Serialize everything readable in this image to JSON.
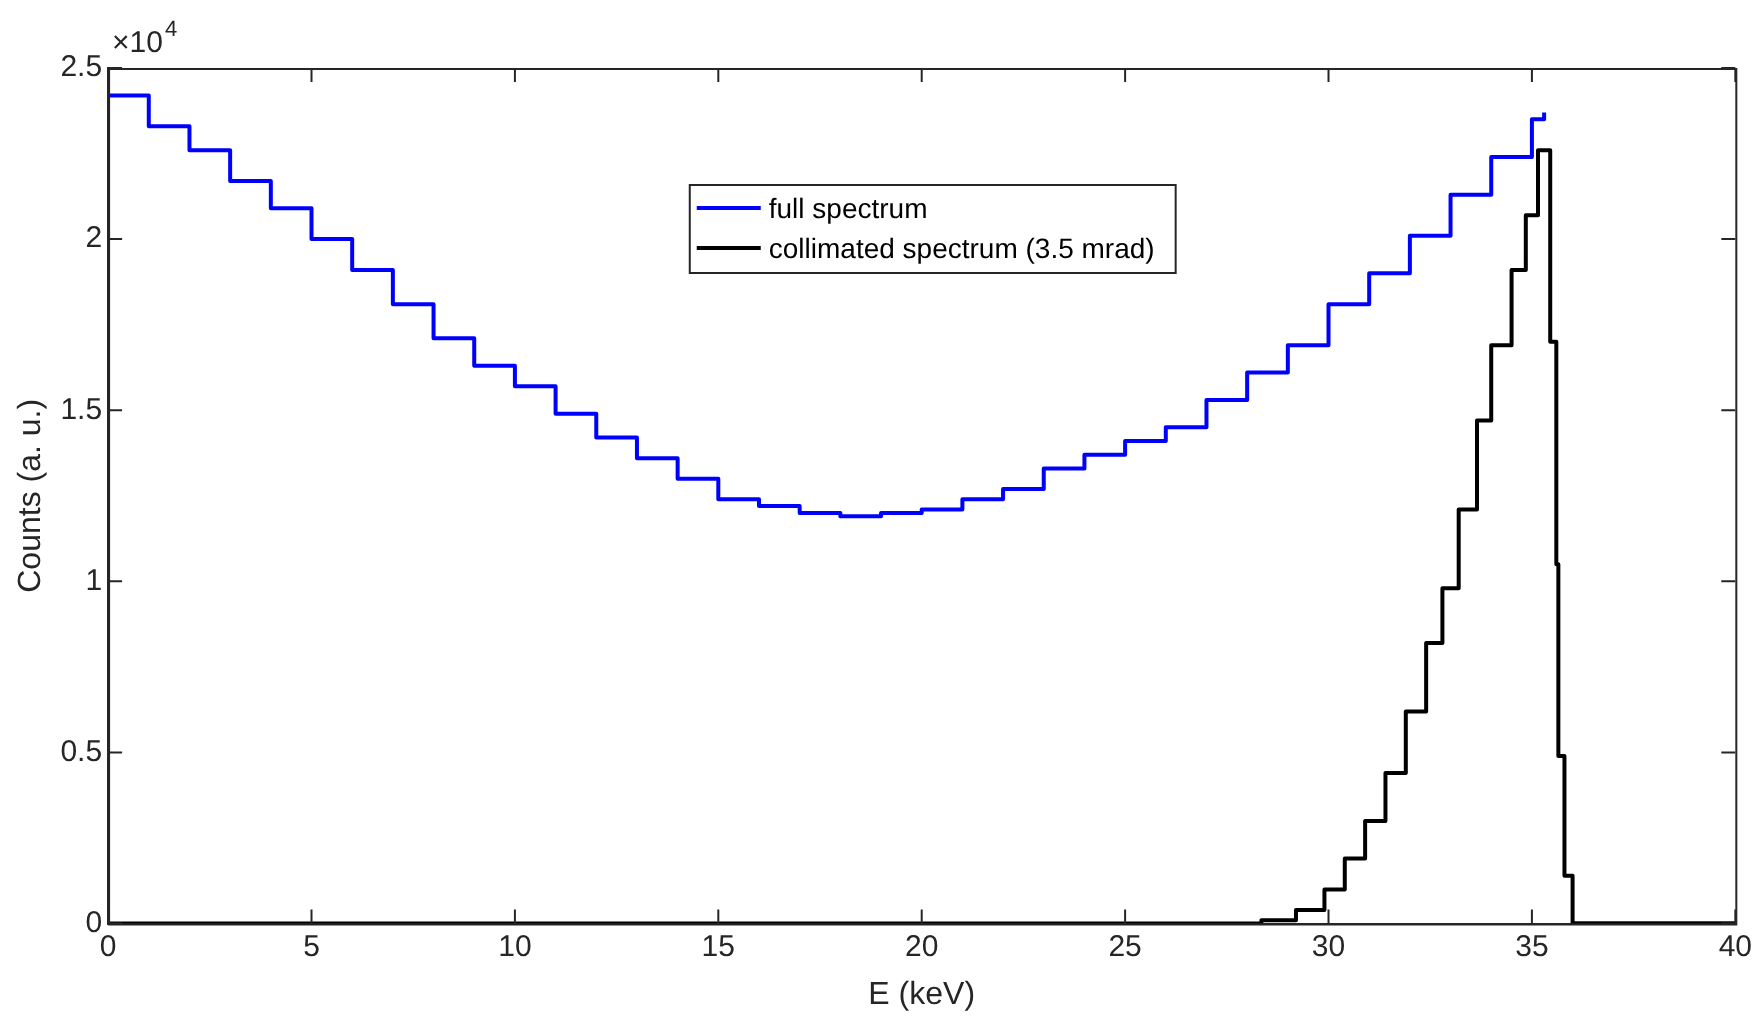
{
  "chart_data": {
    "type": "step",
    "xlabel": "E (keV)",
    "ylabel": "Counts (a. u.)",
    "annotations": [
      "×10$^{4}$"
    ],
    "xlim": [
      0,
      40
    ],
    "xticks": [
      0,
      5,
      10,
      15,
      20,
      25,
      30,
      35,
      40
    ],
    "ylim": [
      0,
      2.5
    ],
    "yticks": [
      0,
      0.5,
      1,
      1.5,
      2,
      2.5
    ],
    "legend": "top",
    "marker": "none",
    "line_style": "solid",
    "series": [
      {
        "name": "full spectrum",
        "color": "#0000ff",
        "x": [
          0,
          1,
          2,
          3,
          4,
          5,
          6,
          7,
          8,
          9,
          10,
          11,
          12,
          13,
          14,
          15,
          16,
          17,
          18,
          19,
          20,
          21,
          22,
          23,
          24,
          25,
          26,
          27,
          28,
          29,
          30,
          31,
          32,
          33,
          34,
          35,
          35.3,
          35.45,
          35.6,
          35.65,
          35.8,
          36,
          40
        ],
        "values": [
          2.42,
          2.33,
          2.26,
          2.17,
          2.09,
          2.0,
          1.91,
          1.81,
          1.71,
          1.63,
          1.57,
          1.49,
          1.42,
          1.36,
          1.3,
          1.24,
          1.22,
          1.2,
          1.19,
          1.2,
          1.21,
          1.24,
          1.27,
          1.33,
          1.37,
          1.41,
          1.45,
          1.53,
          1.61,
          1.69,
          1.81,
          1.9,
          2.01,
          2.13,
          2.24,
          2.35,
          2.37,
          null,
          null,
          null,
          null,
          0,
          0
        ]
      },
      {
        "name": "collimated spectrum (3.5 mrad)",
        "color": "#000000",
        "x": [
          0,
          26.6,
          28.35,
          29.2,
          29.9,
          30.4,
          30.9,
          31.4,
          31.9,
          32.4,
          32.8,
          33.2,
          33.65,
          34,
          34.5,
          34.85,
          35.15,
          35.45,
          35.6,
          35.65,
          35.8,
          36,
          40
        ],
        "values": [
          0,
          0,
          0.01,
          0.04,
          0.1,
          0.19,
          0.3,
          0.44,
          0.62,
          0.82,
          0.98,
          1.21,
          1.47,
          1.69,
          1.91,
          2.07,
          2.26,
          1.7,
          1.05,
          0.49,
          0.14,
          0,
          0
        ]
      }
    ]
  }
}
